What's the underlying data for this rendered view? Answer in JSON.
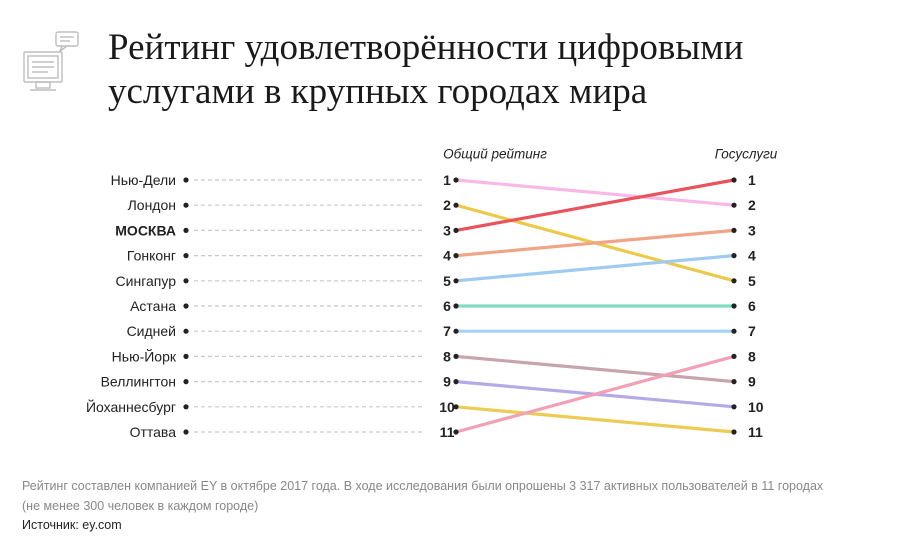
{
  "header": {
    "title_line1": "Рейтинг удовлетворённости цифровыми",
    "title_line2": "услугами в крупных городах мира"
  },
  "chart_data": {
    "type": "slope",
    "left_label": "Общий рейтинг",
    "right_label": "Госуслуги",
    "highlight": "МОСКВА",
    "cities": [
      {
        "name": "Нью-Дели",
        "overall": 1,
        "gov": 2,
        "color": "#f9b8e6"
      },
      {
        "name": "Лондон",
        "overall": 2,
        "gov": 5,
        "color": "#ecc94b"
      },
      {
        "name": "МОСКВА",
        "overall": 3,
        "gov": 1,
        "color": "#e8535c"
      },
      {
        "name": "Гонконг",
        "overall": 4,
        "gov": 3,
        "color": "#efa587"
      },
      {
        "name": "Сингапур",
        "overall": 5,
        "gov": 4,
        "color": "#9fcbf0"
      },
      {
        "name": "Астана",
        "overall": 6,
        "gov": 6,
        "color": "#7fdcc4"
      },
      {
        "name": "Сидней",
        "overall": 7,
        "gov": 7,
        "color": "#a8d2f4"
      },
      {
        "name": "Нью-Йорк",
        "overall": 8,
        "gov": 9,
        "color": "#c8a5ad"
      },
      {
        "name": "Веллингтон",
        "overall": 9,
        "gov": 10,
        "color": "#b6a9e8"
      },
      {
        "name": "Йоханнесбург",
        "overall": 10,
        "gov": 11,
        "color": "#eccc55"
      },
      {
        "name": "Оттава",
        "overall": 11,
        "gov": 8,
        "color": "#f2a0b5"
      }
    ]
  },
  "footer": {
    "note_line1": "Рейтинг составлен компанией EY в октябре 2017 года. В ходе исследования были опрошены 3 317 активных пользователей в 11 городах",
    "note_line2": "(не менее 300 человек в каждом городе)",
    "source": "Источник: ey.com"
  }
}
